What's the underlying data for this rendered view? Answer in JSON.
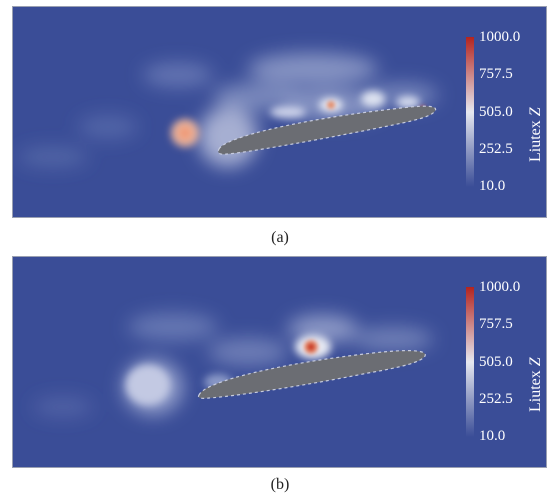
{
  "panels": [
    {
      "caption": "(a)",
      "colorbar": {
        "title": "Liutex",
        "title_var": "Z",
        "tick_labels": [
          "1000.0",
          "757.5",
          "505.0",
          "252.5",
          "10.0"
        ]
      }
    },
    {
      "caption": "(b)",
      "colorbar": {
        "title": "Liutex",
        "title_var": "Z",
        "tick_labels": [
          "1000.0",
          "757.5",
          "505.0",
          "252.5",
          "10.0"
        ]
      }
    }
  ],
  "colors": {
    "background_field": "#3a4d97",
    "airfoil": "#6b6d73",
    "colormap_low": "#3a4d97",
    "colormap_mid": "#dde0ea",
    "colormap_high": "#b4241f"
  }
}
